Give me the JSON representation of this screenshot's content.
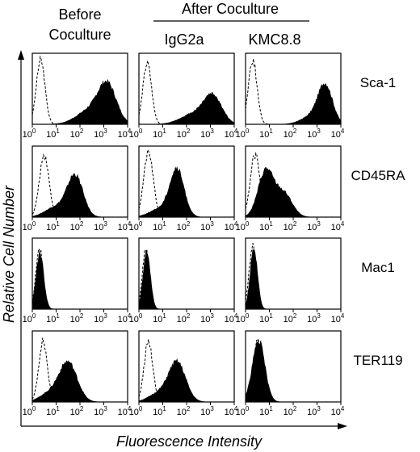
{
  "header": {
    "col1_line1": "Before",
    "col1_line2": "Coculture",
    "group_label": "After Coculture",
    "col2": "IgG2a",
    "col3": "KMC8.8"
  },
  "axes": {
    "ylabel": "Relative Cell Number",
    "xlabel": "Fluorescence Intensity"
  },
  "chart_data": {
    "type": "area",
    "xscale": "log",
    "xlim": [
      1,
      10000
    ],
    "xticks": [
      {
        "base": "10",
        "exp": "0"
      },
      {
        "base": "10",
        "exp": "1"
      },
      {
        "base": "10",
        "exp": "2"
      },
      {
        "base": "10",
        "exp": "3"
      },
      {
        "base": "10",
        "exp": "4"
      }
    ],
    "columns": [
      "Before Coculture",
      "IgG2a",
      "KMC8.8"
    ],
    "rows": [
      "Sca-1",
      "CD45RA",
      "Mac1",
      "TER119"
    ],
    "panels": [
      [
        {
          "control": {
            "mu": 0.35,
            "sd": 0.18,
            "h": 0.95
          },
          "filled": [
            {
              "mu": 3.15,
              "sd": 0.38,
              "h": 0.55
            },
            {
              "mu": 2.4,
              "sd": 0.55,
              "h": 0.2
            }
          ]
        },
        {
          "control": {
            "mu": 0.35,
            "sd": 0.18,
            "h": 0.9
          },
          "filled": [
            {
              "mu": 3.1,
              "sd": 0.38,
              "h": 0.4
            },
            {
              "mu": 2.3,
              "sd": 0.55,
              "h": 0.15
            }
          ]
        },
        {
          "control": {
            "mu": 0.3,
            "sd": 0.18,
            "h": 0.95
          },
          "filled": [
            {
              "mu": 3.35,
              "sd": 0.3,
              "h": 0.55
            },
            {
              "mu": 2.8,
              "sd": 0.45,
              "h": 0.12
            }
          ]
        }
      ],
      [
        {
          "control": {
            "mu": 0.5,
            "sd": 0.2,
            "h": 0.92
          },
          "filled": [
            {
              "mu": 1.8,
              "sd": 0.33,
              "h": 0.6
            },
            {
              "mu": 1.0,
              "sd": 0.45,
              "h": 0.15
            }
          ]
        },
        {
          "control": {
            "mu": 0.4,
            "sd": 0.2,
            "h": 0.95
          },
          "filled": [
            {
              "mu": 1.6,
              "sd": 0.3,
              "h": 0.68
            },
            {
              "mu": 0.9,
              "sd": 0.45,
              "h": 0.12
            }
          ]
        },
        {
          "control": {
            "mu": 0.4,
            "sd": 0.2,
            "h": 0.92
          },
          "filled": [
            {
              "mu": 0.85,
              "sd": 0.32,
              "h": 0.68
            },
            {
              "mu": 1.6,
              "sd": 0.35,
              "h": 0.35
            }
          ]
        }
      ],
      [
        {
          "control": {
            "mu": 0.3,
            "sd": 0.15,
            "h": 0.9
          },
          "filled": [
            {
              "mu": 0.32,
              "sd": 0.16,
              "h": 0.82
            }
          ]
        },
        {
          "control": {
            "mu": 0.3,
            "sd": 0.15,
            "h": 0.9
          },
          "filled": [
            {
              "mu": 0.33,
              "sd": 0.15,
              "h": 0.85
            }
          ]
        },
        {
          "control": {
            "mu": 0.3,
            "sd": 0.15,
            "h": 0.93
          },
          "filled": [
            {
              "mu": 0.35,
              "sd": 0.15,
              "h": 0.9
            }
          ]
        }
      ],
      [
        {
          "control": {
            "mu": 0.45,
            "sd": 0.18,
            "h": 0.9
          },
          "filled": [
            {
              "mu": 1.5,
              "sd": 0.38,
              "h": 0.58
            },
            {
              "mu": 0.7,
              "sd": 0.4,
              "h": 0.12
            }
          ]
        },
        {
          "control": {
            "mu": 0.4,
            "sd": 0.18,
            "h": 0.9
          },
          "filled": [
            {
              "mu": 1.6,
              "sd": 0.36,
              "h": 0.58
            },
            {
              "mu": 0.8,
              "sd": 0.4,
              "h": 0.12
            }
          ]
        },
        {
          "control": {
            "mu": 0.5,
            "sd": 0.18,
            "h": 0.9
          },
          "filled": [
            {
              "mu": 0.55,
              "sd": 0.26,
              "h": 0.9
            }
          ]
        }
      ]
    ]
  }
}
